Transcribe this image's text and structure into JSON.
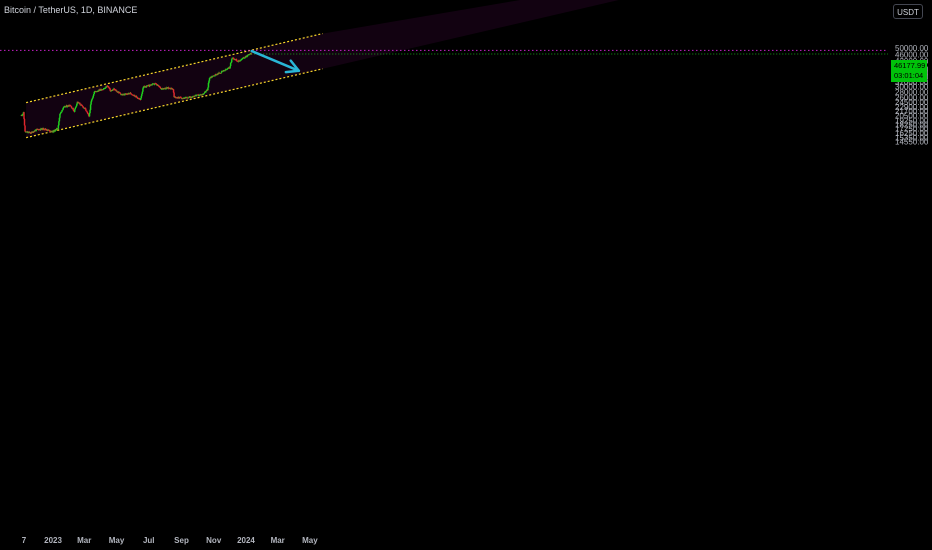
{
  "header": {
    "title": "Bitcoin / TetherUS, 1D, BINANCE"
  },
  "currency_button": "USDT",
  "last_price": {
    "price": "46177.99",
    "countdown": "03:01:04"
  },
  "colors": {
    "background": "#000000",
    "up": "#1fd11f",
    "down": "#e0262f",
    "channel": "#f7d52a",
    "resistance": "#c71fc7",
    "arrow": "#29b6d6",
    "channel_fill": "#120211",
    "axis_text": "#b2b5be"
  },
  "chart_data": {
    "type": "candlestick",
    "title": "Bitcoin / TetherUS, 1D, BINANCE",
    "xlabel": "",
    "ylabel": "",
    "y_scale": "log",
    "ylim": [
      14000,
      57000
    ],
    "x_ticks": [
      "7",
      "2023",
      "Mar",
      "May",
      "Jul",
      "Sep",
      "Nov",
      "2024",
      "Mar",
      "May"
    ],
    "y_ticks": [
      50000.0,
      46000.0,
      42000.0,
      38000.0,
      36000.0,
      34000.0,
      32000.0,
      30000.0,
      28000.0,
      26000.0,
      24500.0,
      22900.0,
      21700.0,
      20500.0,
      19250.0,
      18250.0,
      17250.0,
      16250.0,
      15350.0,
      14550.0
    ],
    "price_path": [
      [
        "2022-11-02",
        20500
      ],
      [
        "2022-11-06",
        21200
      ],
      [
        "2022-11-09",
        16500
      ],
      [
        "2022-11-20",
        16300
      ],
      [
        "2022-12-01",
        17000
      ],
      [
        "2022-12-15",
        17200
      ],
      [
        "2022-12-31",
        16550
      ],
      [
        "2023-01-10",
        17300
      ],
      [
        "2023-01-14",
        20800
      ],
      [
        "2023-01-20",
        22700
      ],
      [
        "2023-02-02",
        23600
      ],
      [
        "2023-02-10",
        21700
      ],
      [
        "2023-02-16",
        24500
      ],
      [
        "2023-03-03",
        22300
      ],
      [
        "2023-03-10",
        20100
      ],
      [
        "2023-03-14",
        24500
      ],
      [
        "2023-03-20",
        28000
      ],
      [
        "2023-04-10",
        29500
      ],
      [
        "2023-04-14",
        30400
      ],
      [
        "2023-04-20",
        28300
      ],
      [
        "2023-04-26",
        29000
      ],
      [
        "2023-05-12",
        26900
      ],
      [
        "2023-05-28",
        27500
      ],
      [
        "2023-06-10",
        25900
      ],
      [
        "2023-06-15",
        25200
      ],
      [
        "2023-06-21",
        29800
      ],
      [
        "2023-07-05",
        30700
      ],
      [
        "2023-07-13",
        31200
      ],
      [
        "2023-07-25",
        29300
      ],
      [
        "2023-08-10",
        29500
      ],
      [
        "2023-08-16",
        29100
      ],
      [
        "2023-08-18",
        26100
      ],
      [
        "2023-09-10",
        25800
      ],
      [
        "2023-09-25",
        26600
      ],
      [
        "2023-10-10",
        27000
      ],
      [
        "2023-10-20",
        28700
      ],
      [
        "2023-10-24",
        33800
      ],
      [
        "2023-11-08",
        35500
      ],
      [
        "2023-11-25",
        37600
      ],
      [
        "2023-12-01",
        38600
      ],
      [
        "2023-12-06",
        44000
      ],
      [
        "2023-12-18",
        42000
      ],
      [
        "2024-01-02",
        45000
      ],
      [
        "2024-01-08",
        46200
      ],
      [
        "2024-01-11",
        46177.99
      ]
    ],
    "channel": {
      "upper": [
        [
          "2022-11-11",
          24300
        ],
        [
          "2024-05-25",
          60500
        ]
      ],
      "lower": [
        [
          "2022-11-11",
          15300
        ],
        [
          "2024-05-25",
          38000
        ]
      ]
    },
    "resistance_level": 48450,
    "projection_arrow": [
      [
        "2024-01-12",
        48000
      ],
      [
        "2024-04-10",
        37000
      ]
    ],
    "last_price": 46177.99
  }
}
